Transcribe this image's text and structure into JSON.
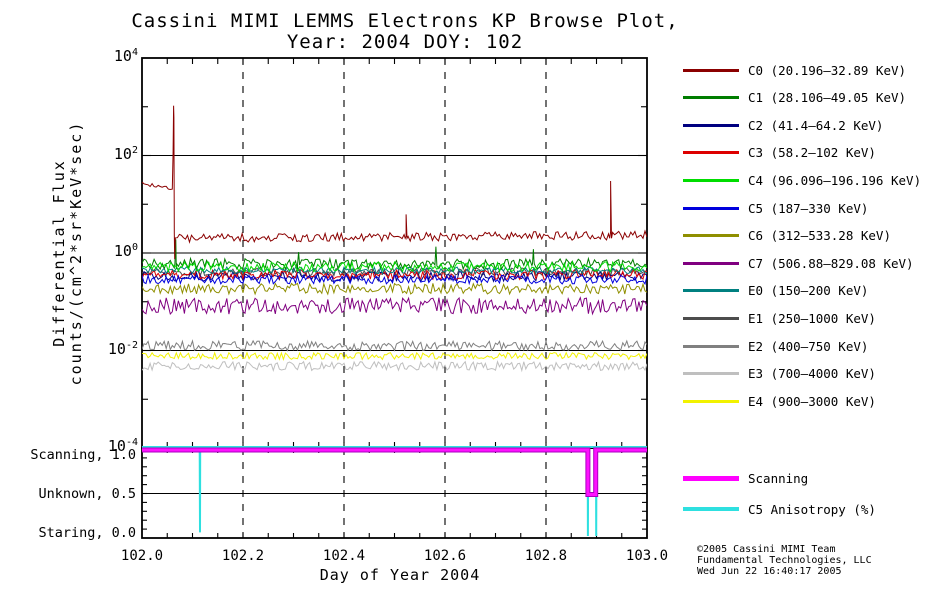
{
  "title": {
    "line1": "Cassini MIMI LEMMS Electrons KP Browse Plot,",
    "line2": "Year: 2004 DOY: 102"
  },
  "main_plot": {
    "ylabel_line1": "Differential Flux",
    "ylabel_line2": "counts/(cm^2*sr*KeV*sec)",
    "yticks": [
      {
        "base": "10",
        "exp": "4"
      },
      {
        "base": "10",
        "exp": "2"
      },
      {
        "base": "10",
        "exp": "0"
      },
      {
        "base": "10",
        "exp": "-2"
      },
      {
        "base": "10",
        "exp": "-4"
      }
    ]
  },
  "x_axis": {
    "label": "Day of Year 2004",
    "ticks": [
      "102.0",
      "102.2",
      "102.4",
      "102.6",
      "102.8",
      "103.0"
    ]
  },
  "subplot": {
    "labels": [
      {
        "text": "Scanning, 1.0"
      },
      {
        "text": "Unknown, 0.5"
      },
      {
        "text": "Staring, 0.0"
      }
    ]
  },
  "legend": {
    "items": [
      {
        "label": "C0 (20.196–32.89 KeV)",
        "color": "#8b0000"
      },
      {
        "label": "C1 (28.106–49.05 KeV)",
        "color": "#007d00"
      },
      {
        "label": "C2 (41.4–64.2 KeV)",
        "color": "#000080"
      },
      {
        "label": "C3 (58.2–102 KeV)",
        "color": "#dd0000"
      },
      {
        "label": "C4 (96.096–196.196 KeV)",
        "color": "#00dd00"
      },
      {
        "label": "C5 (187–330 KeV)",
        "color": "#0000dd"
      },
      {
        "label": "C6 (312–533.28 KeV)",
        "color": "#8f8f00"
      },
      {
        "label": "C7 (506.88–829.08 KeV)",
        "color": "#800080"
      },
      {
        "label": "E0 (150–200 KeV)",
        "color": "#008080"
      },
      {
        "label": "E1 (250–1000 KeV)",
        "color": "#4d4d4d"
      },
      {
        "label": "E2 (400–750 KeV)",
        "color": "#808080"
      },
      {
        "label": "E3 (700–4000 KeV)",
        "color": "#bfbfbf"
      },
      {
        "label": "E4 (900–3000 KeV)",
        "color": "#f2f200"
      }
    ]
  },
  "legend2": {
    "items": [
      {
        "label": "Scanning",
        "color": "#ff00ff"
      },
      {
        "label": "C5 Anisotropy (%)",
        "color": "#2ee0e0"
      }
    ]
  },
  "credits": {
    "line1": "©2005 Cassini MIMI Team",
    "line2": "Fundamental Technologies, LLC",
    "line3": "Wed Jun 22 16:40:17 2005"
  },
  "chart_data": {
    "type": "line",
    "title": "Cassini MIMI LEMMS Electrons KP Browse Plot, Year: 2004 DOY: 102",
    "xlabel": "Day of Year 2004",
    "x_range": [
      102.0,
      103.0
    ],
    "x_ticks": [
      102.0,
      102.2,
      102.4,
      102.6,
      102.8,
      103.0
    ],
    "main": {
      "y_scale": "log",
      "y_range": [
        0.0001,
        10000
      ],
      "ylabel": "Differential Flux counts/(cm^2*sr*KeV*sec)",
      "gridlines_y": [
        100,
        1,
        0.01
      ],
      "gridlines_x_dashed": [
        102.2,
        102.4,
        102.6,
        102.8
      ],
      "series": [
        {
          "name": "E1",
          "color": "#4d4d4d",
          "amp": 0.08,
          "segments": [
            {
              "x0": 102.0,
              "x1": 103.0,
              "level": 0.41
            }
          ]
        },
        {
          "name": "C2",
          "color": "#000080",
          "amp": 0.1,
          "segments": [
            {
              "x0": 102.0,
              "x1": 103.0,
              "level": 0.33
            }
          ]
        },
        {
          "name": "C3",
          "color": "#dd0000",
          "amp": 0.1,
          "segments": [
            {
              "x0": 102.0,
              "x1": 103.0,
              "level": 0.36
            }
          ]
        },
        {
          "name": "C5",
          "color": "#0000dd",
          "amp": 0.09,
          "segments": [
            {
              "x0": 102.0,
              "x1": 103.0,
              "level": 0.285
            }
          ]
        },
        {
          "name": "E0",
          "color": "#008080",
          "amp": 0.07,
          "segments": [
            {
              "x0": 102.0,
              "x1": 103.0,
              "level": 0.44
            }
          ]
        },
        {
          "name": "C6",
          "color": "#8f8f00",
          "amp": 0.11,
          "segments": [
            {
              "x0": 102.0,
              "x1": 103.0,
              "level": 0.185
            }
          ]
        },
        {
          "name": "C1",
          "color": "#007d00",
          "amp": 0.11,
          "segments": [
            {
              "x0": 102.0,
              "x1": 103.0,
              "level": 0.6
            }
          ],
          "spikes": [
            [
              102.067,
              1.9
            ],
            [
              102.31,
              1.05
            ],
            [
              102.582,
              1.35
            ],
            [
              102.775,
              1.2
            ]
          ]
        },
        {
          "name": "C4",
          "color": "#00dd00",
          "amp": 0.1,
          "segments": [
            {
              "x0": 102.0,
              "x1": 103.0,
              "level": 0.52
            }
          ]
        },
        {
          "name": "C7",
          "color": "#800080",
          "amp": 0.17,
          "segments": [
            {
              "x0": 102.0,
              "x1": 103.0,
              "level": 0.082
            }
          ]
        },
        {
          "name": "E2",
          "color": "#808080",
          "amp": 0.1,
          "segments": [
            {
              "x0": 102.0,
              "x1": 103.0,
              "level": 0.0125
            }
          ]
        },
        {
          "name": "E3",
          "color": "#bfbfbf",
          "amp": 0.09,
          "segments": [
            {
              "x0": 102.0,
              "x1": 103.0,
              "level": 0.0048
            }
          ]
        },
        {
          "name": "E4",
          "color": "#f2f200",
          "amp": 0.07,
          "segments": [
            {
              "x0": 102.0,
              "x1": 103.0,
              "level": 0.0077
            }
          ]
        },
        {
          "name": "C0",
          "color": "#8b0000",
          "amp": 0.09,
          "segments": [
            {
              "x0": 102.0,
              "x1": 102.06,
              "level": 27,
              "level2": 20,
              "amp": 0.045
            },
            {
              "x0": 102.066,
              "x1": 103.0,
              "level": 2.0,
              "level2": 2.3
            }
          ],
          "extra": [
            [
              102.0615,
              120
            ],
            [
              102.0625,
              1050
            ],
            [
              102.0632,
              600
            ],
            [
              102.064,
              2.5
            ],
            [
              102.0648,
              0.75
            ],
            [
              102.0655,
              1.3
            ]
          ],
          "spikes": [
            [
              102.523,
              6.2
            ],
            [
              102.928,
              30
            ]
          ]
        }
      ]
    },
    "subplot": {
      "y_range": [
        0,
        1
      ],
      "yticks": [
        {
          "value": 1.0,
          "label": "Scanning, 1.0"
        },
        {
          "value": 0.5,
          "label": "Unknown, 0.5"
        },
        {
          "value": 0.0,
          "label": "Staring, 0.0"
        }
      ],
      "gridlines_y": [
        0.5
      ],
      "series": [
        {
          "name": "C5 Anisotropy (%)",
          "color": "#2ee0e0",
          "width": 2,
          "points": [
            [
              102.0,
              1
            ],
            [
              102.1143,
              1
            ],
            [
              102.1148,
              0.04
            ],
            [
              102.1153,
              1
            ],
            [
              102.8825,
              1
            ],
            [
              102.883,
              0
            ],
            [
              102.8835,
              1
            ],
            [
              102.899,
              1
            ],
            [
              102.8995,
              0
            ],
            [
              102.9,
              1
            ],
            [
              103.0,
              1
            ]
          ]
        },
        {
          "name": "Scanning",
          "color": "#ff10ff",
          "outline": "#a800c0",
          "width": 3,
          "points": [
            [
              102.0,
              1
            ],
            [
              102.883,
              1
            ],
            [
              102.883,
              0.5
            ],
            [
              102.8985,
              0.5
            ],
            [
              102.8985,
              1
            ],
            [
              103.0,
              1
            ]
          ]
        }
      ]
    }
  }
}
